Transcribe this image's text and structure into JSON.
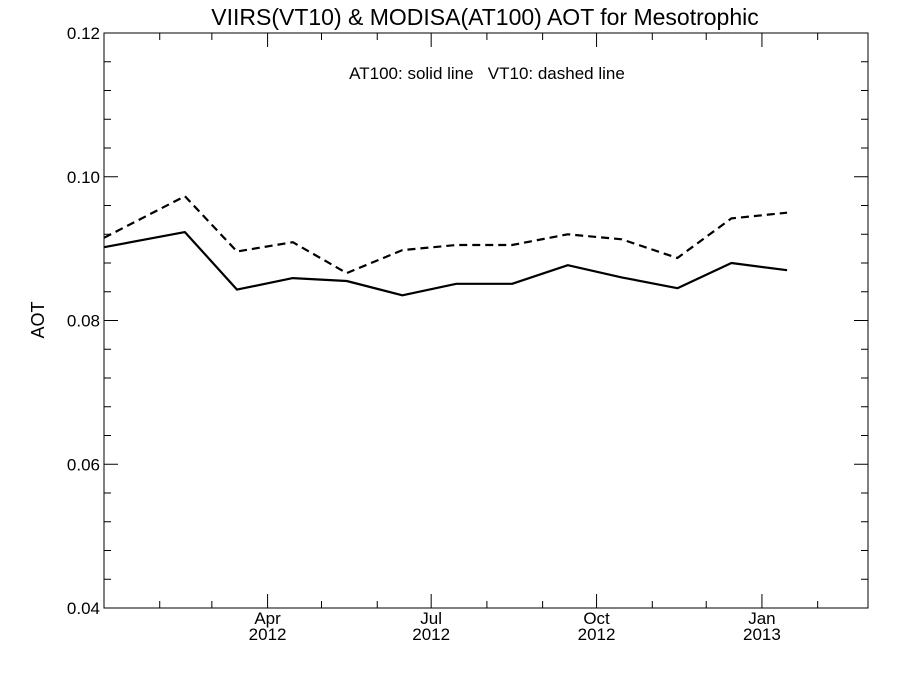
{
  "chart_data": {
    "type": "line",
    "title": "VIIRS(VT10) & MODISA(AT100)  AOT for Mesotrophic",
    "annotation": "AT100: solid line   VT10: dashed line",
    "xlabel": "",
    "ylabel": "AOT",
    "ylim": [
      0.04,
      0.12
    ],
    "xlim": [
      "2012-01-01",
      "2013-03-01"
    ],
    "yticks": [
      "0.04",
      "0.06",
      "0.08",
      "0.10",
      "0.12"
    ],
    "xticks": [
      {
        "date": "2012-04-01",
        "month": "Apr",
        "year": "2012"
      },
      {
        "date": "2012-07-01",
        "month": "Jul",
        "year": "2012"
      },
      {
        "date": "2012-10-01",
        "month": "Oct",
        "year": "2012"
      },
      {
        "date": "2013-01-01",
        "month": "Jan",
        "year": "2013"
      }
    ],
    "grid": false,
    "series": [
      {
        "name": "AT100",
        "style": "solid",
        "color": "#000000",
        "points": [
          {
            "x": "2012-01-01",
            "y": 0.0902
          },
          {
            "x": "2012-02-15",
            "y": 0.0923
          },
          {
            "x": "2012-03-15",
            "y": 0.0843
          },
          {
            "x": "2012-04-15",
            "y": 0.0859
          },
          {
            "x": "2012-05-15",
            "y": 0.0855
          },
          {
            "x": "2012-06-15",
            "y": 0.0835
          },
          {
            "x": "2012-07-15",
            "y": 0.0851
          },
          {
            "x": "2012-08-15",
            "y": 0.0851
          },
          {
            "x": "2012-09-15",
            "y": 0.0877
          },
          {
            "x": "2012-10-15",
            "y": 0.086
          },
          {
            "x": "2012-11-15",
            "y": 0.0845
          },
          {
            "x": "2012-12-15",
            "y": 0.088
          },
          {
            "x": "2013-01-15",
            "y": 0.087
          }
        ]
      },
      {
        "name": "VT10",
        "style": "dashed",
        "color": "#000000",
        "points": [
          {
            "x": "2012-01-01",
            "y": 0.0915
          },
          {
            "x": "2012-02-15",
            "y": 0.0973
          },
          {
            "x": "2012-03-15",
            "y": 0.0896
          },
          {
            "x": "2012-04-15",
            "y": 0.0909
          },
          {
            "x": "2012-05-15",
            "y": 0.0866
          },
          {
            "x": "2012-06-15",
            "y": 0.0898
          },
          {
            "x": "2012-07-15",
            "y": 0.0905
          },
          {
            "x": "2012-08-15",
            "y": 0.0905
          },
          {
            "x": "2012-09-15",
            "y": 0.092
          },
          {
            "x": "2012-10-15",
            "y": 0.0913
          },
          {
            "x": "2012-11-15",
            "y": 0.0887
          },
          {
            "x": "2012-12-15",
            "y": 0.0942
          },
          {
            "x": "2013-01-15",
            "y": 0.095
          }
        ]
      }
    ]
  }
}
